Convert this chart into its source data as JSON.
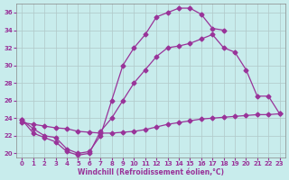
{
  "bg_color": "#c8ecec",
  "line_color": "#993399",
  "grid_color": "#b0c8c8",
  "xlabel": "Windchill (Refroidissement éolien,°C)",
  "xlim_min": -0.5,
  "xlim_max": 23.5,
  "ylim_min": 19.5,
  "ylim_max": 37.0,
  "xticks": [
    0,
    1,
    2,
    3,
    4,
    5,
    6,
    7,
    8,
    9,
    10,
    11,
    12,
    13,
    14,
    15,
    16,
    17,
    18,
    19,
    20,
    21,
    22,
    23
  ],
  "yticks": [
    20,
    22,
    24,
    26,
    28,
    30,
    32,
    34,
    36
  ],
  "curve1_x": [
    0,
    1,
    2,
    3,
    4,
    5,
    6,
    7,
    8,
    9,
    10,
    11,
    12,
    13,
    14,
    15,
    16,
    17,
    18
  ],
  "curve1_y": [
    23.8,
    22.8,
    22.0,
    21.8,
    20.5,
    20.0,
    20.2,
    22.0,
    26.0,
    30.0,
    32.0,
    33.5,
    35.5,
    36.0,
    36.5,
    36.5,
    35.8,
    34.2,
    34.0
  ],
  "curve2_x": [
    0,
    1,
    2,
    3,
    4,
    5,
    6,
    7,
    8,
    9,
    10,
    11,
    12,
    13,
    14,
    15,
    16,
    17,
    18,
    19,
    20,
    21,
    22,
    23
  ],
  "curve2_y": [
    23.8,
    22.3,
    21.8,
    21.3,
    20.2,
    19.8,
    20.0,
    22.5,
    24.0,
    26.0,
    28.0,
    29.5,
    31.0,
    32.0,
    32.2,
    32.5,
    33.0,
    33.5,
    32.0,
    31.5,
    29.5,
    26.5,
    26.5,
    24.5
  ],
  "curve3_x": [
    0,
    1,
    2,
    3,
    4,
    5,
    6,
    7,
    8,
    9,
    10,
    11,
    12,
    13,
    14,
    15,
    16,
    17,
    18,
    19,
    20,
    21,
    22,
    23
  ],
  "curve3_y": [
    23.5,
    23.3,
    23.1,
    22.9,
    22.8,
    22.5,
    22.4,
    22.3,
    22.3,
    22.4,
    22.5,
    22.7,
    23.0,
    23.3,
    23.5,
    23.7,
    23.9,
    24.0,
    24.1,
    24.2,
    24.3,
    24.4,
    24.4,
    24.5
  ]
}
